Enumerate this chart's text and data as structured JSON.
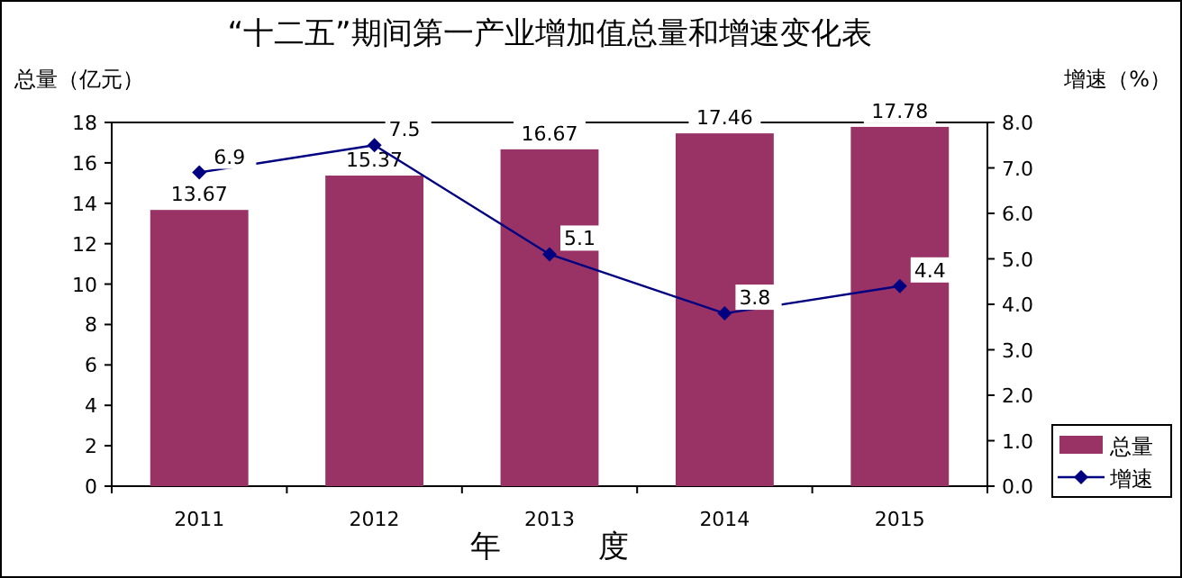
{
  "chart_data": {
    "type": "bar",
    "title": "“十二五”期间第一产业增加值总量和增速变化表",
    "xlabel": "年          度",
    "ylabel": "总量（亿元）",
    "y2label": "增速（%）",
    "categories": [
      "2011",
      "2012",
      "2013",
      "2014",
      "2015"
    ],
    "series": [
      {
        "name": "总量",
        "color": "#993366",
        "values": [
          13.67,
          15.37,
          16.67,
          17.46,
          17.78
        ]
      },
      {
        "name": "增速",
        "type": "line",
        "axis": "y2",
        "color": "#000080",
        "marker": "diamond",
        "values": [
          6.9,
          7.5,
          5.1,
          3.8,
          4.4
        ]
      }
    ],
    "ylim": [
      0,
      18
    ],
    "yticks": [
      0,
      2,
      4,
      6,
      8,
      10,
      12,
      14,
      16,
      18
    ],
    "y2lim": [
      0,
      8
    ],
    "y2ticks": [
      {
        "value": 0,
        "label": "0.0"
      },
      {
        "value": 1,
        "label": "1.0"
      },
      {
        "value": 2,
        "label": "2.0"
      },
      {
        "value": 3,
        "label": "3.0"
      },
      {
        "value": 4,
        "label": "4.0"
      },
      {
        "value": 5,
        "label": "5.0"
      },
      {
        "value": 6,
        "label": "6.0"
      },
      {
        "value": 7,
        "label": "7.0"
      },
      {
        "value": 8,
        "label": "8.0"
      }
    ],
    "data_labels": true,
    "legend": "bottom right"
  }
}
